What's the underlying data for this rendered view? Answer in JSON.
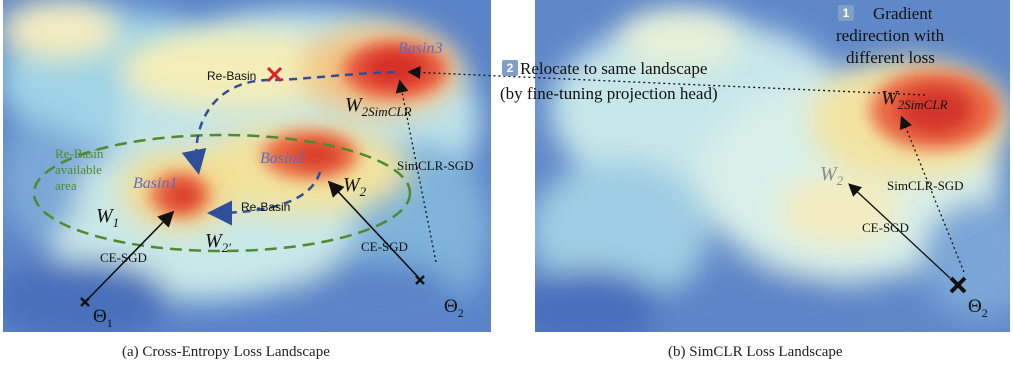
{
  "panel_a": {
    "caption": "(a) Cross-Entropy Loss Landscape",
    "basins": [
      "Basin1",
      "Basin2",
      "Basin3"
    ],
    "re_basin_labels": [
      "Re-Basin",
      "Re-Basin"
    ],
    "area_label": [
      "Re-Basin",
      "available",
      "area"
    ],
    "weights": {
      "w1": "W",
      "w1_sub": "1",
      "w2": "W",
      "w2_sub": "2",
      "w2_prime": "W",
      "w2_prime_sup": "2′",
      "w2simclr": "W",
      "w2simclr_sub": "2SimCLR"
    },
    "paths": [
      "CE-SGD",
      "CE-SGD",
      "SimCLR-SGD"
    ],
    "thetas": [
      "Θ",
      "1",
      "Θ",
      "2"
    ]
  },
  "panel_b": {
    "caption": "(b) SimCLR Loss Landscape",
    "weights": {
      "w2": "W",
      "w2_sub": "2",
      "w2simclr": "W",
      "w2simclr_sub": "2SimCLR"
    },
    "paths": [
      "SimCLR-SGD",
      "CE-SGD"
    ],
    "theta": "Θ",
    "theta_sub": "2"
  },
  "annotations": {
    "step1_badge": "1",
    "step1_text": [
      "Gradient",
      "redirection with",
      "different loss"
    ],
    "step2_badge": "2",
    "step2_text": [
      "Relocate to same landscape",
      "(by fine-tuning projection head)"
    ]
  },
  "colors": {
    "low": "#3b64b5",
    "mid": "#d7eef2",
    "high": "#e0302a",
    "ellipse": "#4f8a2e",
    "reBasinArrow": "#2f4f9a",
    "basinLabel": "#5b6fc0",
    "cross": "#e02020"
  }
}
